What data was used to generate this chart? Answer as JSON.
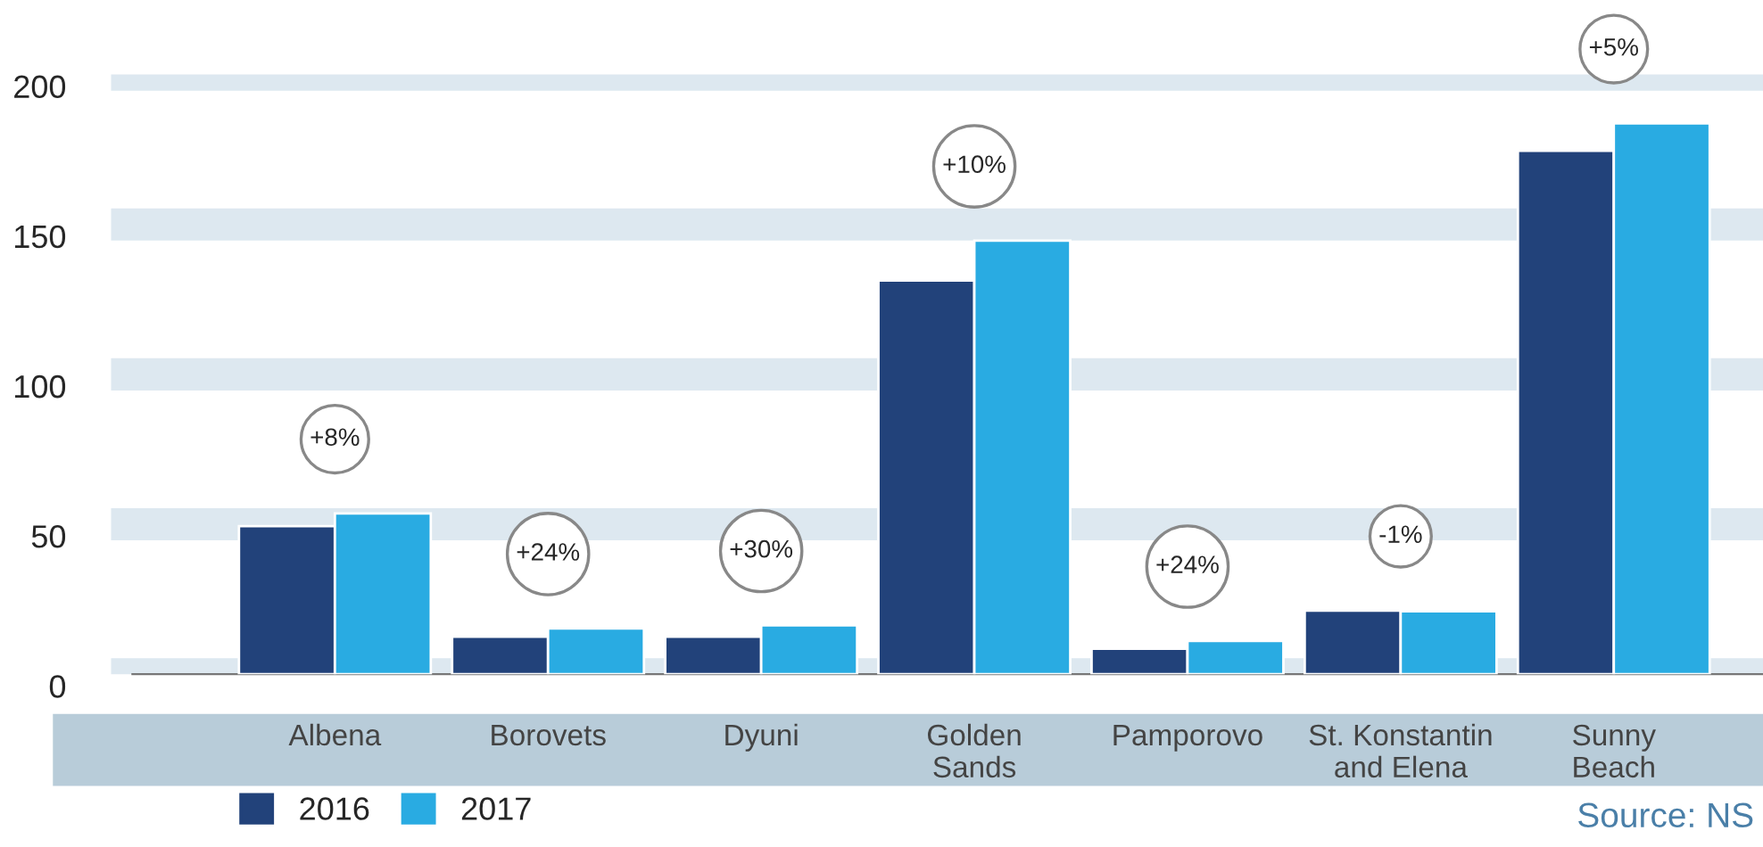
{
  "chart_data": {
    "type": "bar",
    "categories": [
      "Albena",
      "Borovets",
      "Dyuni",
      "Golden\nSands",
      "Pamporovo",
      "St. Konstantin\nand Elena",
      "Sunny\nBeach"
    ],
    "series": [
      {
        "name": "2016",
        "color": "#22427a",
        "values": [
          49.4,
          12.5,
          12.5,
          131.3,
          8.5,
          21.2,
          174.6
        ]
      },
      {
        "name": "2017",
        "color": "#29abe2",
        "values": [
          53.6,
          15.3,
          16.3,
          144.6,
          11.1,
          21.0,
          183.7
        ]
      }
    ],
    "ylim": [
      0,
      200
    ],
    "yticks": [
      0,
      50,
      100,
      150,
      200
    ],
    "grid": "y",
    "legend": "bottom left",
    "annotations": [
      "+8%",
      "+24%",
      "+30%",
      "+10%",
      "+24%",
      "-1%",
      "+5%",
      "Source: NS"
    ]
  }
}
